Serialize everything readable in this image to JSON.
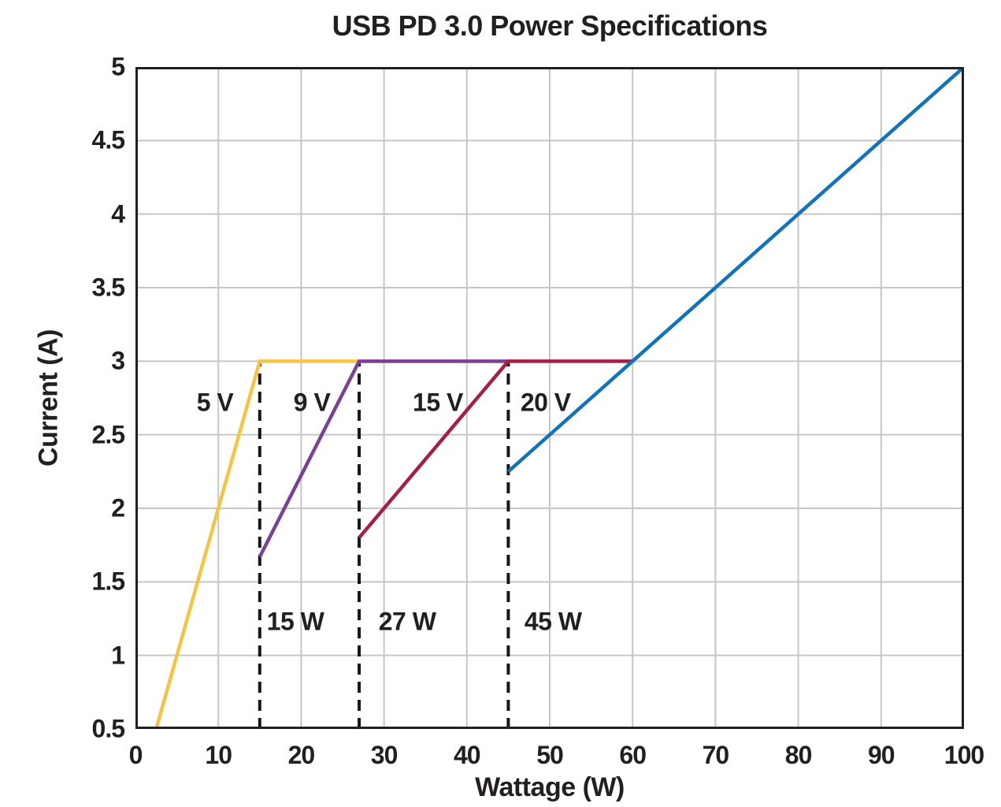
{
  "chart_data": {
    "type": "line",
    "title": "USB PD 3.0 Power Specifications",
    "xlabel": "Wattage (W)",
    "ylabel": "Current (A)",
    "xlim": [
      0,
      100
    ],
    "ylim": [
      0.5,
      5
    ],
    "x_ticks": [
      0,
      10,
      20,
      30,
      40,
      50,
      60,
      70,
      80,
      90,
      100
    ],
    "y_ticks": [
      0.5,
      1,
      1.5,
      2,
      2.5,
      3,
      3.5,
      4,
      4.5,
      5
    ],
    "grid": true,
    "legend": "none",
    "series": [
      {
        "name": "5 V",
        "color": "#F7C440",
        "points": [
          [
            2.5,
            0.5
          ],
          [
            15,
            3
          ],
          [
            27,
            3
          ]
        ]
      },
      {
        "name": "9 V",
        "color": "#7B3F97",
        "points": [
          [
            15,
            1.67
          ],
          [
            27,
            3
          ],
          [
            45,
            3
          ]
        ]
      },
      {
        "name": "15 V",
        "color": "#A81D45",
        "points": [
          [
            27,
            1.8
          ],
          [
            45,
            3
          ],
          [
            60,
            3
          ]
        ]
      },
      {
        "name": "20 V",
        "color": "#1173B9",
        "points": [
          [
            45,
            2.25
          ],
          [
            100,
            5
          ]
        ]
      }
    ],
    "guides": [
      {
        "x": 15,
        "y_from": 0.5,
        "y_to": 3
      },
      {
        "x": 27,
        "y_from": 0.5,
        "y_to": 3
      },
      {
        "x": 45,
        "y_from": 0.5,
        "y_to": 3
      }
    ],
    "guide_style": {
      "color": "#16161F",
      "dash": [
        14,
        9
      ],
      "width": 4
    },
    "annotations": [
      {
        "text": "5 V",
        "x": 9.6,
        "y": 2.72
      },
      {
        "text": "9 V",
        "x": 21.3,
        "y": 2.72
      },
      {
        "text": "15 V",
        "x": 36.5,
        "y": 2.72
      },
      {
        "text": "20 V",
        "x": 49.5,
        "y": 2.72
      },
      {
        "text": "15 W",
        "x": 19.3,
        "y": 1.23
      },
      {
        "text": "27 W",
        "x": 32.8,
        "y": 1.23
      },
      {
        "text": "45 W",
        "x": 50.4,
        "y": 1.23
      }
    ],
    "colors": {
      "text": "#231F20",
      "grid": "#C6C6C8",
      "axis": "#231F20",
      "background": "#FFFFFF"
    }
  }
}
